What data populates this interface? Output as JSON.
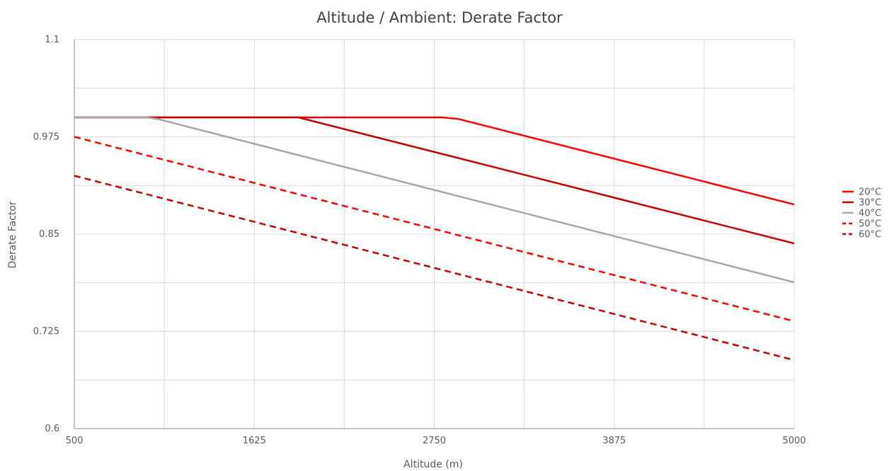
{
  "chart_data": {
    "type": "line",
    "title": "Altitude / Ambient: Derate Factor",
    "xlabel": "Altitude (m)",
    "ylabel": "Derate Factor",
    "xlim": [
      500,
      5000
    ],
    "ylim": [
      0.6,
      1.1
    ],
    "x_ticks": [
      "500",
      "1625",
      "2750",
      "3875",
      "5000"
    ],
    "y_ticks": [
      "0.6",
      "0.725",
      "0.85",
      "0.975",
      "1.1"
    ],
    "x_minor_grid": [
      1062.5,
      2187.5,
      3312.5,
      4437.5
    ],
    "y_minor_grid": [
      0.6625,
      0.7875,
      0.9125,
      1.0375
    ],
    "grid": true,
    "legend_position": "right",
    "series": [
      {
        "name": "20°C",
        "color": "#ff0000",
        "dash": "solid",
        "points": [
          [
            500,
            1.0
          ],
          [
            2800,
            1.0
          ],
          [
            2900,
            0.998
          ],
          [
            5000,
            0.888
          ]
        ]
      },
      {
        "name": "30°C",
        "color": "#c00000",
        "dash": "solid",
        "points": [
          [
            500,
            1.0
          ],
          [
            1900,
            1.0
          ],
          [
            5000,
            0.838
          ]
        ]
      },
      {
        "name": "40°C",
        "color": "#a6a6a6",
        "dash": "solid",
        "points": [
          [
            500,
            1.0
          ],
          [
            950,
            1.0
          ],
          [
            1020,
            0.998
          ],
          [
            5000,
            0.788
          ]
        ]
      },
      {
        "name": "50°C",
        "color": "#ff0000",
        "dash": "dashed",
        "points": [
          [
            500,
            0.975
          ],
          [
            5000,
            0.738
          ]
        ]
      },
      {
        "name": "60°C",
        "color": "#c00000",
        "dash": "dashed",
        "points": [
          [
            500,
            0.925
          ],
          [
            5000,
            0.688
          ]
        ]
      }
    ]
  }
}
